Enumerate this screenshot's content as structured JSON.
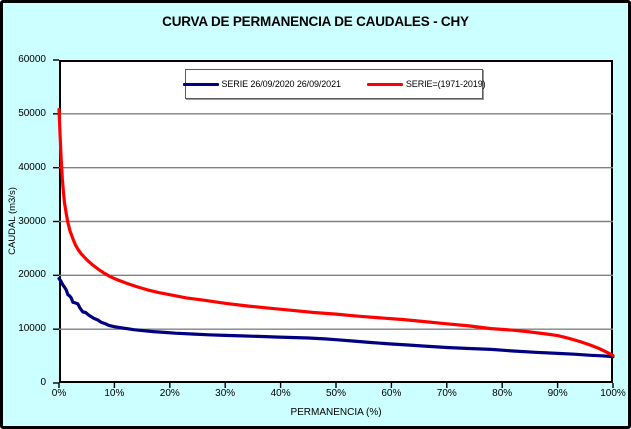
{
  "chart_data": {
    "type": "line",
    "title": "CURVA DE PERMANENCIA DE CAUDALES - CHY",
    "xlabel": "PERMANENCIA (%)",
    "ylabel": "CAUDAL (m3/s)",
    "xlim": [
      0,
      100
    ],
    "ylim": [
      0,
      60000
    ],
    "x_tick_values": [
      0,
      10,
      20,
      30,
      40,
      50,
      60,
      70,
      80,
      90,
      100
    ],
    "x_tick_labels": [
      "0%",
      "10%",
      "20%",
      "30%",
      "40%",
      "50%",
      "60%",
      "70%",
      "80%",
      "90%",
      "100%"
    ],
    "y_tick_values": [
      0,
      10000,
      20000,
      30000,
      40000,
      50000,
      60000
    ],
    "y_tick_labels": [
      "0",
      "10000",
      "20000",
      "30000",
      "40000",
      "50000",
      "60000"
    ],
    "grid": "horizontal-only",
    "gridline_color": "#808080",
    "background_color": "#CCFFFF",
    "plot_background": "#FFFFFF",
    "legend_position": "top-center-inside",
    "series": [
      {
        "name": "SERIE 26/09/2020 26/09/2021",
        "color": "#000080",
        "points": [
          [
            0,
            19400
          ],
          [
            0.3,
            19000
          ],
          [
            0.7,
            18200
          ],
          [
            1,
            17800
          ],
          [
            1.3,
            17300
          ],
          [
            1.6,
            16400
          ],
          [
            1.9,
            16200
          ],
          [
            2.2,
            15800
          ],
          [
            2.5,
            15000
          ],
          [
            2.9,
            14900
          ],
          [
            3.4,
            14700
          ],
          [
            3.8,
            13900
          ],
          [
            4.3,
            13200
          ],
          [
            4.8,
            13100
          ],
          [
            5.4,
            12600
          ],
          [
            6.3,
            12000
          ],
          [
            7,
            11700
          ],
          [
            7.6,
            11300
          ],
          [
            8.4,
            11000
          ],
          [
            9,
            10700
          ],
          [
            10,
            10450
          ],
          [
            11,
            10300
          ],
          [
            12,
            10150
          ],
          [
            13.5,
            9900
          ],
          [
            15,
            9750
          ],
          [
            17,
            9550
          ],
          [
            19,
            9400
          ],
          [
            21,
            9250
          ],
          [
            24,
            9100
          ],
          [
            27,
            8950
          ],
          [
            30,
            8850
          ],
          [
            33,
            8750
          ],
          [
            36,
            8650
          ],
          [
            39,
            8550
          ],
          [
            42,
            8450
          ],
          [
            45,
            8350
          ],
          [
            48,
            8200
          ],
          [
            50,
            8050
          ],
          [
            53,
            7800
          ],
          [
            56,
            7550
          ],
          [
            60,
            7250
          ],
          [
            63,
            7050
          ],
          [
            66,
            6850
          ],
          [
            70,
            6600
          ],
          [
            74,
            6400
          ],
          [
            78,
            6250
          ],
          [
            82,
            5950
          ],
          [
            86,
            5700
          ],
          [
            90,
            5500
          ],
          [
            93,
            5350
          ],
          [
            96,
            5150
          ],
          [
            98,
            5050
          ],
          [
            100,
            4900
          ]
        ]
      },
      {
        "name": "SERIE=(1971-2019)",
        "color": "#FF0000",
        "points": [
          [
            0,
            50800
          ],
          [
            0.2,
            46000
          ],
          [
            0.4,
            41500
          ],
          [
            0.6,
            38000
          ],
          [
            0.8,
            35500
          ],
          [
            1,
            33500
          ],
          [
            1.3,
            31500
          ],
          [
            1.6,
            29800
          ],
          [
            2,
            28200
          ],
          [
            2.5,
            26800
          ],
          [
            3,
            25600
          ],
          [
            3.5,
            24700
          ],
          [
            4,
            24000
          ],
          [
            5,
            22900
          ],
          [
            6,
            22000
          ],
          [
            7,
            21200
          ],
          [
            8,
            20500
          ],
          [
            9,
            19900
          ],
          [
            10,
            19400
          ],
          [
            12,
            18600
          ],
          [
            14,
            17900
          ],
          [
            16,
            17300
          ],
          [
            18,
            16800
          ],
          [
            20,
            16400
          ],
          [
            23,
            15800
          ],
          [
            26,
            15400
          ],
          [
            30,
            14800
          ],
          [
            34,
            14300
          ],
          [
            38,
            13900
          ],
          [
            42,
            13500
          ],
          [
            46,
            13100
          ],
          [
            50,
            12800
          ],
          [
            54,
            12400
          ],
          [
            58,
            12100
          ],
          [
            62,
            11800
          ],
          [
            66,
            11400
          ],
          [
            70,
            11000
          ],
          [
            74,
            10600
          ],
          [
            78,
            10100
          ],
          [
            82,
            9800
          ],
          [
            85,
            9500
          ],
          [
            88,
            9100
          ],
          [
            90,
            8800
          ],
          [
            92,
            8300
          ],
          [
            94,
            7700
          ],
          [
            96,
            7000
          ],
          [
            97.5,
            6400
          ],
          [
            98.5,
            5900
          ],
          [
            99.5,
            5400
          ],
          [
            100,
            5100
          ]
        ]
      }
    ]
  }
}
